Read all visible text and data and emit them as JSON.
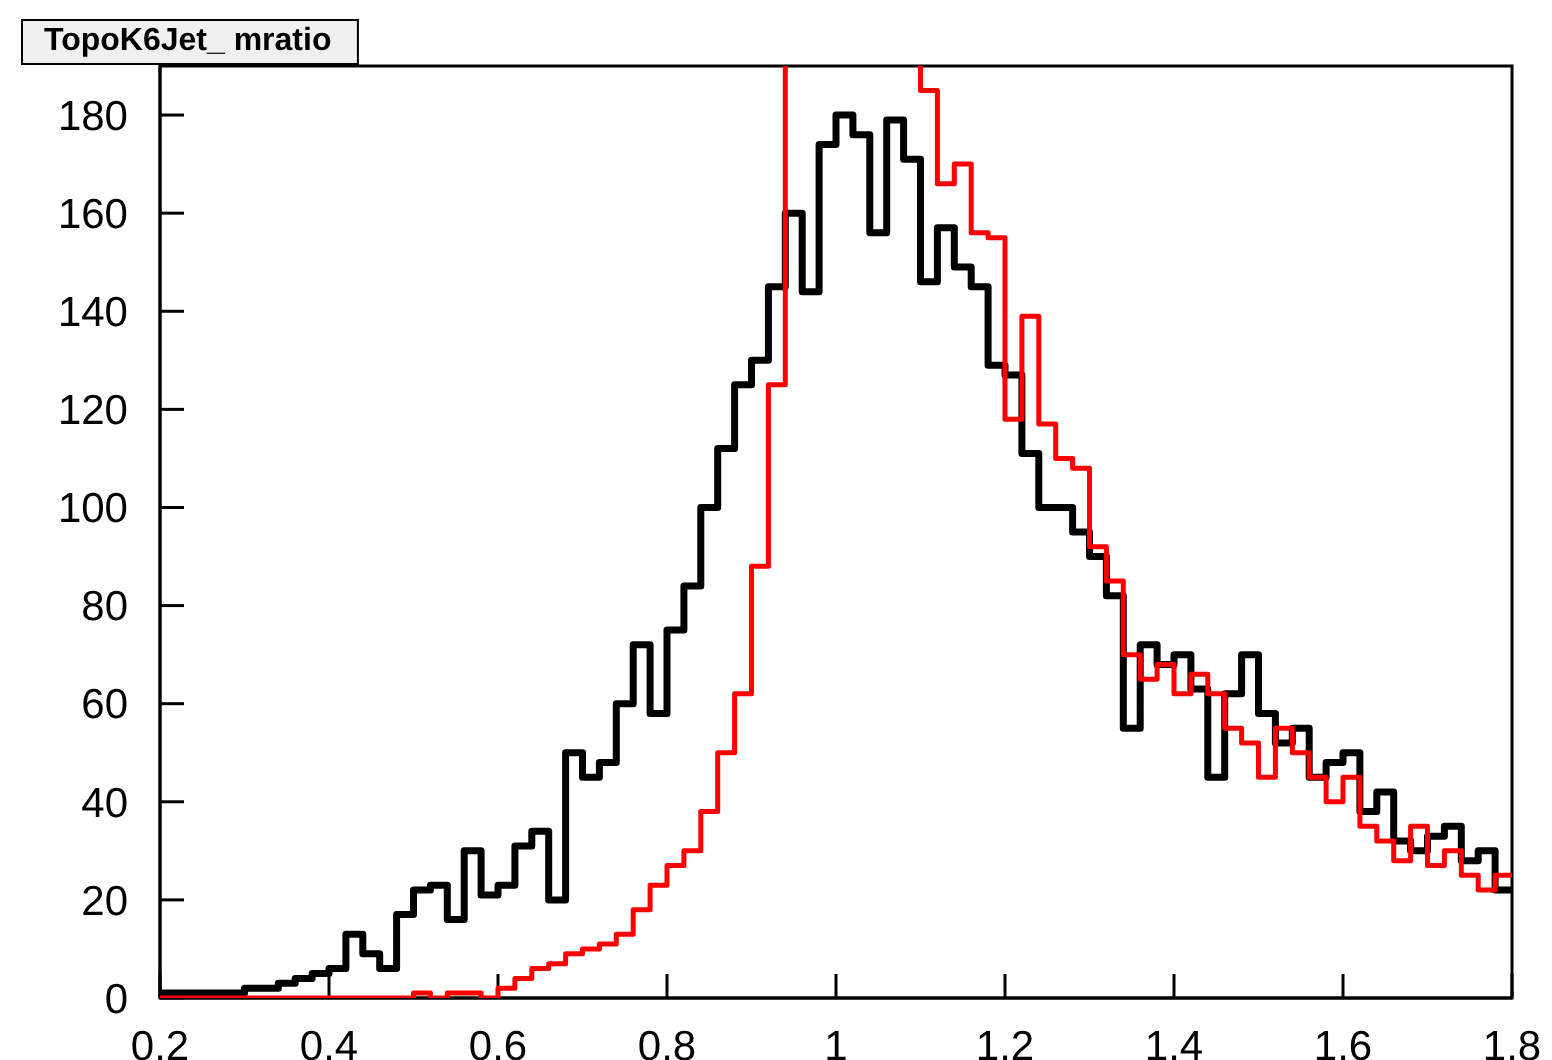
{
  "chart_data": {
    "type": "step",
    "title": "TopoK6Jet_ mratio",
    "x": [
      0.2,
      0.22,
      0.24,
      0.26,
      0.28,
      0.3,
      0.32,
      0.34,
      0.36,
      0.38,
      0.4,
      0.42,
      0.44,
      0.46,
      0.48,
      0.5,
      0.52,
      0.54,
      0.56,
      0.58,
      0.6,
      0.62,
      0.64,
      0.66,
      0.68,
      0.7,
      0.72,
      0.74,
      0.76,
      0.78,
      0.8,
      0.82,
      0.84,
      0.86,
      0.88,
      0.9,
      0.92,
      0.94,
      0.96,
      0.98,
      1.0,
      1.02,
      1.04,
      1.06,
      1.08,
      1.1,
      1.12,
      1.14,
      1.16,
      1.18,
      1.2,
      1.22,
      1.24,
      1.26,
      1.28,
      1.3,
      1.32,
      1.34,
      1.36,
      1.38,
      1.4,
      1.42,
      1.44,
      1.46,
      1.48,
      1.5,
      1.52,
      1.54,
      1.56,
      1.58,
      1.6,
      1.62,
      1.64,
      1.66,
      1.68,
      1.7,
      1.72,
      1.74,
      1.76,
      1.78,
      1.8
    ],
    "series": [
      {
        "color": "#000000",
        "values": [
          1,
          1,
          1,
          1,
          1,
          2,
          2,
          3,
          4,
          5,
          6,
          13,
          9,
          6,
          17,
          22,
          23,
          16,
          30,
          21,
          23,
          31,
          34,
          20,
          50,
          45,
          48,
          60,
          72,
          58,
          75,
          84,
          100,
          112,
          125,
          130,
          145,
          160,
          144,
          174,
          180,
          176,
          156,
          179,
          171,
          146,
          157,
          149,
          145,
          129,
          127,
          111,
          100,
          100,
          95,
          90,
          82,
          55,
          72,
          68,
          70,
          63,
          45,
          62,
          70,
          58,
          52,
          55,
          45,
          48,
          50,
          38,
          42,
          32,
          30,
          33,
          35,
          28,
          30,
          22,
          22
        ]
      },
      {
        "color": "#ff0000",
        "values": [
          0,
          0,
          0,
          0,
          0,
          0,
          0,
          0,
          0,
          0,
          0,
          0,
          0,
          0,
          0,
          1,
          0,
          1,
          1,
          0,
          2,
          4,
          6,
          7,
          9,
          10,
          11,
          13,
          18,
          23,
          27,
          30,
          38,
          50,
          62,
          88,
          125,
          null,
          null,
          null,
          null,
          null,
          null,
          null,
          null,
          185,
          166,
          170,
          156,
          155,
          118,
          139,
          117,
          110,
          108,
          92,
          85,
          70,
          65,
          68,
          62,
          66,
          62,
          55,
          52,
          45,
          55,
          50,
          45,
          40,
          45,
          35,
          32,
          28,
          35,
          27,
          30,
          25,
          22,
          25,
          25
        ]
      }
    ],
    "xlim": [
      0.2,
      1.8
    ],
    "xticks": [
      0.2,
      0.4,
      0.6,
      0.8,
      1,
      1.2,
      1.4,
      1.6,
      1.8
    ],
    "ylim": [
      0,
      190
    ],
    "yticks": [
      0,
      20,
      40,
      60,
      80,
      100,
      120,
      140,
      160,
      180
    ],
    "grid": false
  }
}
